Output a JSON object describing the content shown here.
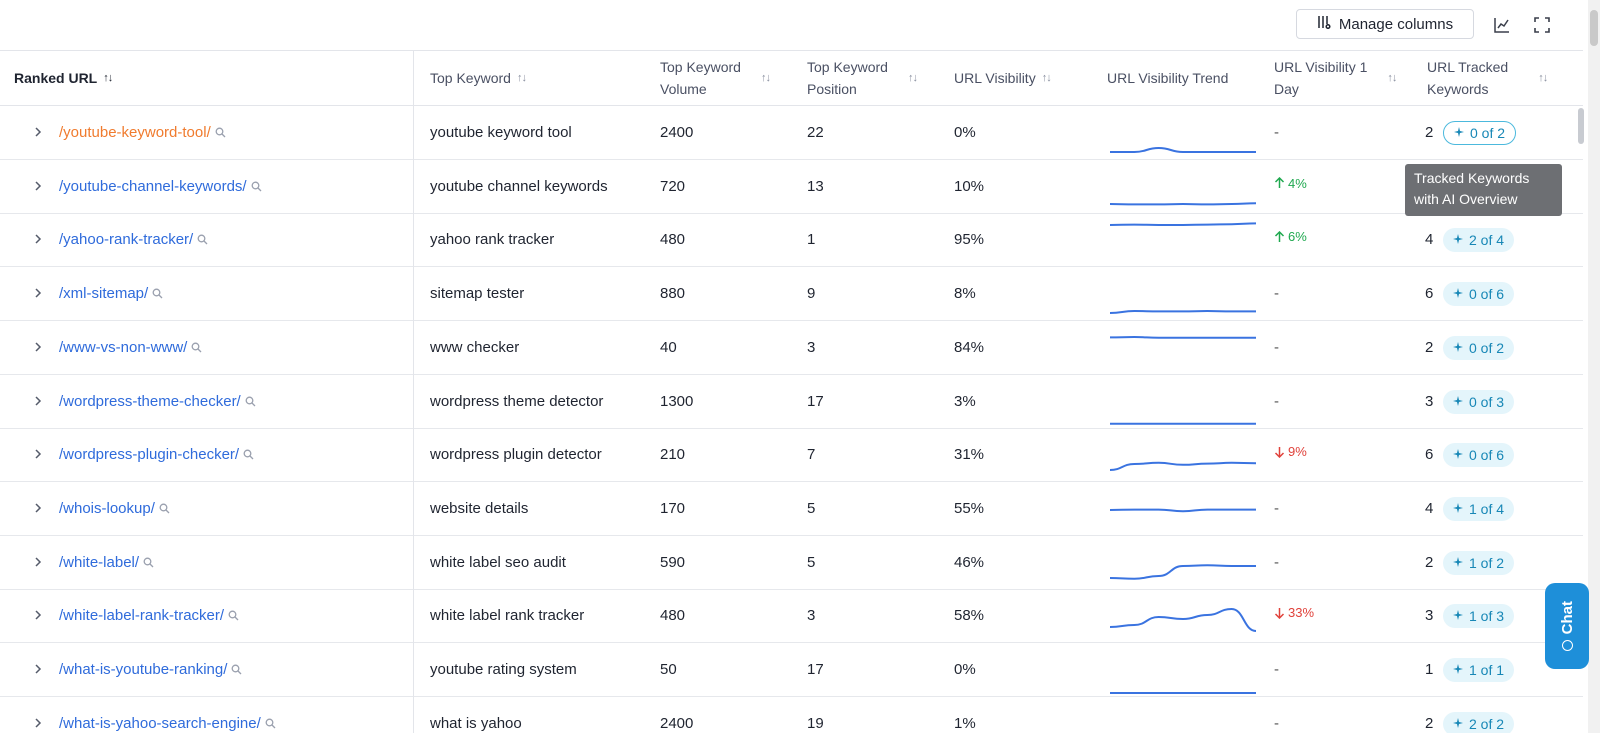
{
  "toolbar": {
    "manage_columns": "Manage columns"
  },
  "columns": {
    "ranked_url": "Ranked URL",
    "top_keyword": "Top Keyword",
    "top_keyword_volume": "Top Keyword\nVolume",
    "top_keyword_position": "Top Keyword\nPosition",
    "url_visibility": "URL Visibility",
    "url_visibility_trend": "URL Visibility Trend",
    "url_visibility_1day": "URL Visibility 1\nDay",
    "url_tracked_keywords": "URL Tracked\nKeywords"
  },
  "sort_indicator": "↑↓",
  "sort_indicator_active": "↑↓",
  "rows": [
    {
      "url": "/youtube-keyword-tool/",
      "keyword": "youtube keyword tool",
      "volume": "2400",
      "position": "22",
      "visibility": "0%",
      "trend": [
        0.1,
        0.1,
        0.2,
        0.1,
        0.1,
        0.1,
        0.1
      ],
      "day": "-",
      "day_dir": "none",
      "tracked": "2",
      "ai": "0 of 2"
    },
    {
      "url": "/youtube-channel-keywords/",
      "keyword": "youtube channel keywords",
      "volume": "720",
      "position": "13",
      "visibility": "10%",
      "trend": [
        0.15,
        0.14,
        0.14,
        0.15,
        0.14,
        0.15,
        0.17
      ],
      "day": "4%",
      "day_dir": "up",
      "tracked": "",
      "ai": ""
    },
    {
      "url": "/yahoo-rank-tracker/",
      "keyword": "yahoo rank tracker",
      "volume": "480",
      "position": "1",
      "visibility": "95%",
      "trend": [
        0.95,
        0.96,
        0.95,
        0.95,
        0.96,
        0.97,
        0.99
      ],
      "day": "6%",
      "day_dir": "up",
      "tracked": "4",
      "ai": "2 of 4"
    },
    {
      "url": "/xml-sitemap/",
      "keyword": "sitemap tester",
      "volume": "880",
      "position": "9",
      "visibility": "8%",
      "trend": [
        0.1,
        0.15,
        0.14,
        0.14,
        0.15,
        0.14,
        0.14
      ],
      "day": "-",
      "day_dir": "none",
      "tracked": "6",
      "ai": "0 of 6"
    },
    {
      "url": "/www-vs-non-www/",
      "keyword": "www checker",
      "volume": "40",
      "position": "3",
      "visibility": "84%",
      "trend": [
        0.84,
        0.85,
        0.83,
        0.83,
        0.83,
        0.83,
        0.83
      ],
      "day": "-",
      "day_dir": "none",
      "tracked": "2",
      "ai": "0 of 2"
    },
    {
      "url": "/wordpress-theme-checker/",
      "keyword": "wordpress theme detector",
      "volume": "1300",
      "position": "17",
      "visibility": "3%",
      "trend": [
        0.03,
        0.03,
        0.03,
        0.03,
        0.03,
        0.03,
        0.03
      ],
      "day": "-",
      "day_dir": "none",
      "tracked": "3",
      "ai": "0 of 3"
    },
    {
      "url": "/wordpress-plugin-checker/",
      "keyword": "wordpress plugin detector",
      "volume": "210",
      "position": "7",
      "visibility": "31%",
      "trend": [
        0.2,
        0.35,
        0.38,
        0.33,
        0.36,
        0.38,
        0.37
      ],
      "day": "9%",
      "day_dir": "down",
      "tracked": "6",
      "ai": "0 of 6"
    },
    {
      "url": "/whois-lookup/",
      "keyword": "website details",
      "volume": "170",
      "position": "5",
      "visibility": "55%",
      "trend": [
        0.55,
        0.56,
        0.56,
        0.52,
        0.56,
        0.56,
        0.56
      ],
      "day": "-",
      "day_dir": "none",
      "tracked": "4",
      "ai": "1 of 4"
    },
    {
      "url": "/white-label/",
      "keyword": "white label seo audit",
      "volume": "590",
      "position": "5",
      "visibility": "46%",
      "trend": [
        0.2,
        0.18,
        0.25,
        0.5,
        0.52,
        0.5,
        0.5
      ],
      "day": "-",
      "day_dir": "none",
      "tracked": "2",
      "ai": "1 of 2"
    },
    {
      "url": "/white-label-rank-tracker/",
      "keyword": "white label rank tracker",
      "volume": "480",
      "position": "3",
      "visibility": "58%",
      "trend": [
        0.3,
        0.35,
        0.55,
        0.5,
        0.6,
        0.75,
        0.2
      ],
      "day": "33%",
      "day_dir": "down",
      "tracked": "3",
      "ai": "1 of 3"
    },
    {
      "url": "/what-is-youtube-ranking/",
      "keyword": "youtube rating system",
      "volume": "50",
      "position": "17",
      "visibility": "0%",
      "trend": [
        0,
        0,
        0,
        0,
        0,
        0,
        0
      ],
      "day": "-",
      "day_dir": "none",
      "tracked": "1",
      "ai": "1 of 1"
    },
    {
      "url": "/what-is-yahoo-search-engine/",
      "keyword": "what is yahoo",
      "volume": "2400",
      "position": "19",
      "visibility": "1%",
      "trend": [
        0.01,
        0.01,
        0.01,
        0.01,
        0.01,
        0.01,
        0.01
      ],
      "day": "-",
      "day_dir": "none",
      "tracked": "2",
      "ai": "2 of 2"
    }
  ],
  "tooltip": "Tracked Keywords\nwith AI Overview",
  "chat": {
    "label": "Chat"
  },
  "colors": {
    "link": "#2f6bdb",
    "link_active": "#f07b2e",
    "trend_line": "#3a73e0",
    "up": "#1fa84f",
    "down": "#e0413a",
    "badge_bg": "#e4f5fb",
    "chat_bg": "#1e8fd9"
  },
  "icons": {
    "manage": "columns-icon",
    "chart": "chart-icon",
    "fullscreen": "fullscreen-icon",
    "magnifier": "search-icon",
    "sparkle": "sparkle-icon",
    "chevron": "chevron-right-icon"
  }
}
